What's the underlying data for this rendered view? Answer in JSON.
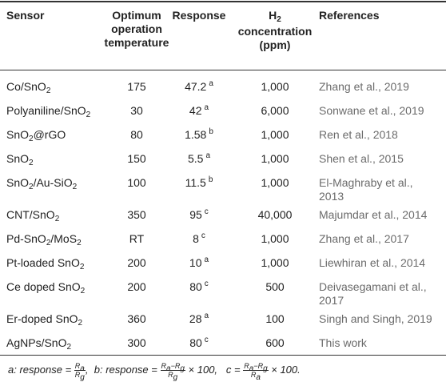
{
  "header": {
    "sensor": "Sensor",
    "temp_line1": "Optimum",
    "temp_line2": "operation",
    "temp_line3": "temperature",
    "response": "Response",
    "conc_h": "H",
    "conc_sub": "2",
    "conc_line2": "concentration",
    "conc_line3": "(ppm)",
    "references": "References"
  },
  "rows": [
    {
      "sensor": [
        [
          "Co/SnO",
          ""
        ],
        [
          "2",
          "sub"
        ]
      ],
      "temp": "175",
      "resp": "47.2",
      "mark": "a",
      "conc": "1,000",
      "ref": "Zhang et al., 2019"
    },
    {
      "sensor": [
        [
          "Polyaniline/SnO",
          ""
        ],
        [
          "2",
          "sub"
        ]
      ],
      "temp": "30",
      "resp": "42",
      "mark": "a",
      "conc": "6,000",
      "ref": "Sonwane et al., 2019"
    },
    {
      "sensor": [
        [
          "SnO",
          ""
        ],
        [
          "2",
          "sub"
        ],
        [
          "@rGO",
          ""
        ]
      ],
      "temp": "80",
      "resp": "1.58",
      "mark": "b",
      "conc": "1,000",
      "ref": "Ren et al., 2018"
    },
    {
      "sensor": [
        [
          "SnO",
          ""
        ],
        [
          "2",
          "sub"
        ]
      ],
      "temp": "150",
      "resp": "5.5",
      "mark": "a",
      "conc": "1,000",
      "ref": "Shen et al., 2015"
    },
    {
      "sensor": [
        [
          "SnO",
          ""
        ],
        [
          "2",
          "sub"
        ],
        [
          "/Au-SiO",
          ""
        ],
        [
          "2",
          "sub"
        ]
      ],
      "temp": "100",
      "resp": "11.5",
      "mark": "b",
      "conc": "1,000",
      "ref": "El-Maghraby et al.,",
      "ref2": "2013"
    },
    {
      "sensor": [
        [
          "CNT/SnO",
          ""
        ],
        [
          "2",
          "sub"
        ]
      ],
      "temp": "350",
      "resp": "95",
      "mark": "c",
      "conc": "40,000",
      "ref": "Majumdar et al., 2014"
    },
    {
      "sensor": [
        [
          "Pd-SnO",
          ""
        ],
        [
          "2",
          "sub"
        ],
        [
          "/MoS",
          ""
        ],
        [
          "2",
          "sub"
        ]
      ],
      "temp": "RT",
      "resp": "8",
      "mark": "c",
      "conc": "1,000",
      "ref": "Zhang et al., 2017"
    },
    {
      "sensor": [
        [
          "Pt-loaded SnO",
          ""
        ],
        [
          "2",
          "sub"
        ]
      ],
      "temp": "200",
      "resp": "10",
      "mark": "a",
      "conc": "1,000",
      "ref": "Liewhiran et al., 2014"
    },
    {
      "sensor": [
        [
          "Ce doped SnO",
          ""
        ],
        [
          "2",
          "sub"
        ]
      ],
      "temp": "200",
      "resp": "80",
      "mark": "c",
      "conc": "500",
      "ref": "Deivasegamani et al.,",
      "ref2": "2017"
    },
    {
      "sensor": [
        [
          "Er-doped SnO",
          ""
        ],
        [
          "2",
          "sub"
        ]
      ],
      "temp": "360",
      "resp": "28",
      "mark": "a",
      "conc": "100",
      "ref": "Singh and Singh, 2019"
    },
    {
      "sensor": [
        [
          "AgNPs/SnO",
          ""
        ],
        [
          "2",
          "sub"
        ]
      ],
      "temp": "300",
      "resp": "80",
      "mark": "c",
      "conc": "600",
      "ref": "This work"
    }
  ],
  "footnote": {
    "a_label": "a:",
    "b_label": "b:",
    "c_label": "c",
    "response_word": "response",
    "eq": "=",
    "comma": ",",
    "times100": "× 100,",
    "times100_end": "× 100.",
    "ra": "R",
    "ra_sub": "a",
    "rg": "R",
    "rg_sub": "g",
    "minus": "−"
  }
}
